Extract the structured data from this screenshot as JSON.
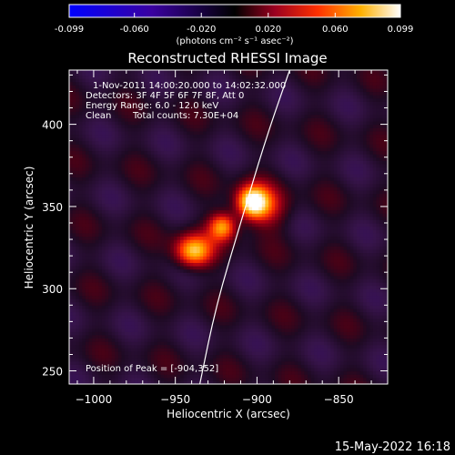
{
  "colorbar": {
    "tick_labels": [
      "-0.099",
      "-0.060",
      "-0.020",
      "0.020",
      "0.060",
      "0.099"
    ],
    "tick_values": [
      -0.099,
      -0.06,
      -0.02,
      0.02,
      0.06,
      0.099
    ],
    "units_label": "(photons cm⁻² s⁻¹ asec⁻²)",
    "range": [
      -0.099,
      0.099
    ]
  },
  "chart_data": {
    "type": "heatmap",
    "title": "Reconstructed RHESSI Image",
    "xlabel": "Heliocentric X (arcsec)",
    "ylabel": "Heliocentric Y (arcsec)",
    "xlim": [
      -1015,
      -820
    ],
    "ylim": [
      242,
      433
    ],
    "x_ticks": [
      -1000,
      -950,
      -900,
      -850
    ],
    "y_ticks": [
      250,
      300,
      350,
      400
    ],
    "annotations": [
      "1-Nov-2011 14:00:20.000 to 14:02:32.000",
      "Detectors: 3F 4F 5F 6F 7F 8F, Att 0",
      "Energy Range: 6.0 - 12.0 keV",
      "Clean",
      "Total counts: 7.30E+04"
    ],
    "peak_label": "Position of Peak = [-904,352]",
    "peak": [
      -904,
      352
    ],
    "sources": [
      {
        "x": -904,
        "y": 352,
        "intensity": 0.099,
        "sx": 7,
        "sy": 7
      },
      {
        "x": -922,
        "y": 337,
        "intensity": 0.075,
        "sx": 6,
        "sy": 6
      },
      {
        "x": -940,
        "y": 322,
        "intensity": 0.085,
        "sx": 8,
        "sy": 7
      },
      {
        "x": -895,
        "y": 348,
        "intensity": 0.035,
        "sx": 10,
        "sy": 9
      }
    ],
    "limb_curve": [
      [
        -935,
        242
      ],
      [
        -925,
        290
      ],
      [
        -910,
        340
      ],
      [
        -895,
        390
      ],
      [
        -880,
        433
      ]
    ]
  },
  "footer": {
    "date": "15-May-2022 16:18"
  }
}
